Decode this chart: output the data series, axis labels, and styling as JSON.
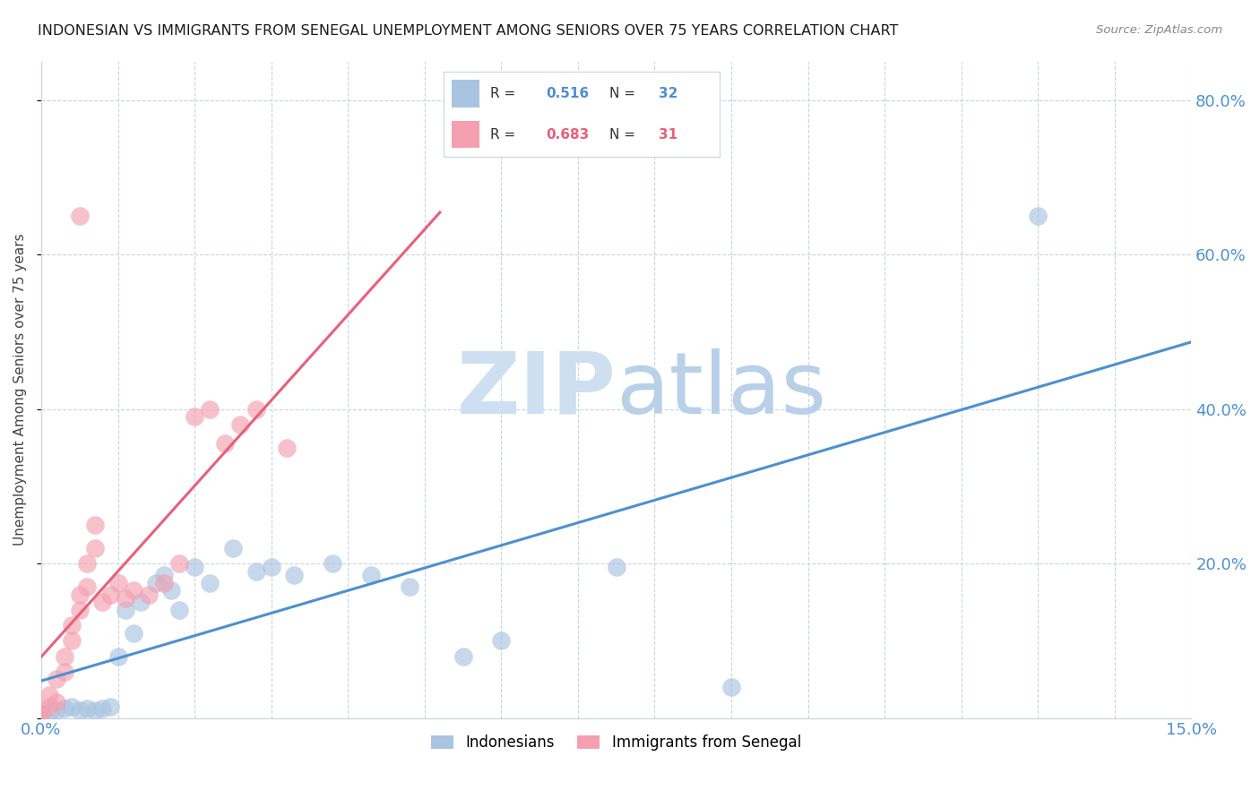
{
  "title": "INDONESIAN VS IMMIGRANTS FROM SENEGAL UNEMPLOYMENT AMONG SENIORS OVER 75 YEARS CORRELATION CHART",
  "source": "Source: ZipAtlas.com",
  "ylabel_label": "Unemployment Among Seniors over 75 years",
  "legend_items": [
    {
      "label": "Indonesians",
      "color": "#a8c4e0"
    },
    {
      "label": "Immigrants from Senegal",
      "color": "#f4a0b0"
    }
  ],
  "r_indonesian": "0.516",
  "n_indonesian": "32",
  "r_senegal": "0.683",
  "n_senegal": "31",
  "blue_color": "#4d90d0",
  "pink_color": "#e8607a",
  "dot_blue": "#a8c4e0",
  "dot_pink": "#f4a0b0",
  "line_blue": "#4d90d0",
  "line_pink": "#e8607a",
  "watermark_zip": "ZIP",
  "watermark_atlas": "atlas",
  "watermark_color": "#dce8f5",
  "xlim": [
    0.0,
    0.15
  ],
  "ylim": [
    0.0,
    0.85
  ],
  "indo_x": [
    0.0,
    0.001,
    0.002,
    0.003,
    0.004,
    0.005,
    0.006,
    0.007,
    0.008,
    0.009,
    0.01,
    0.011,
    0.012,
    0.013,
    0.015,
    0.016,
    0.017,
    0.018,
    0.02,
    0.022,
    0.025,
    0.028,
    0.03,
    0.033,
    0.038,
    0.043,
    0.048,
    0.055,
    0.06,
    0.075,
    0.09,
    0.13
  ],
  "indo_y": [
    0.005,
    0.008,
    0.01,
    0.012,
    0.015,
    0.01,
    0.012,
    0.01,
    0.012,
    0.015,
    0.08,
    0.14,
    0.11,
    0.15,
    0.175,
    0.185,
    0.165,
    0.14,
    0.195,
    0.175,
    0.22,
    0.19,
    0.195,
    0.185,
    0.2,
    0.185,
    0.17,
    0.08,
    0.1,
    0.195,
    0.04,
    0.65
  ],
  "sene_x": [
    0.0,
    0.0,
    0.001,
    0.001,
    0.002,
    0.002,
    0.003,
    0.003,
    0.004,
    0.004,
    0.005,
    0.005,
    0.006,
    0.006,
    0.007,
    0.007,
    0.008,
    0.009,
    0.01,
    0.011,
    0.012,
    0.014,
    0.016,
    0.018,
    0.02,
    0.022,
    0.024,
    0.026,
    0.028,
    0.032,
    0.005
  ],
  "sene_y": [
    0.005,
    0.01,
    0.015,
    0.03,
    0.02,
    0.05,
    0.06,
    0.08,
    0.1,
    0.12,
    0.14,
    0.16,
    0.17,
    0.2,
    0.22,
    0.25,
    0.15,
    0.16,
    0.175,
    0.155,
    0.165,
    0.16,
    0.175,
    0.2,
    0.39,
    0.4,
    0.355,
    0.38,
    0.4,
    0.35,
    0.65
  ]
}
